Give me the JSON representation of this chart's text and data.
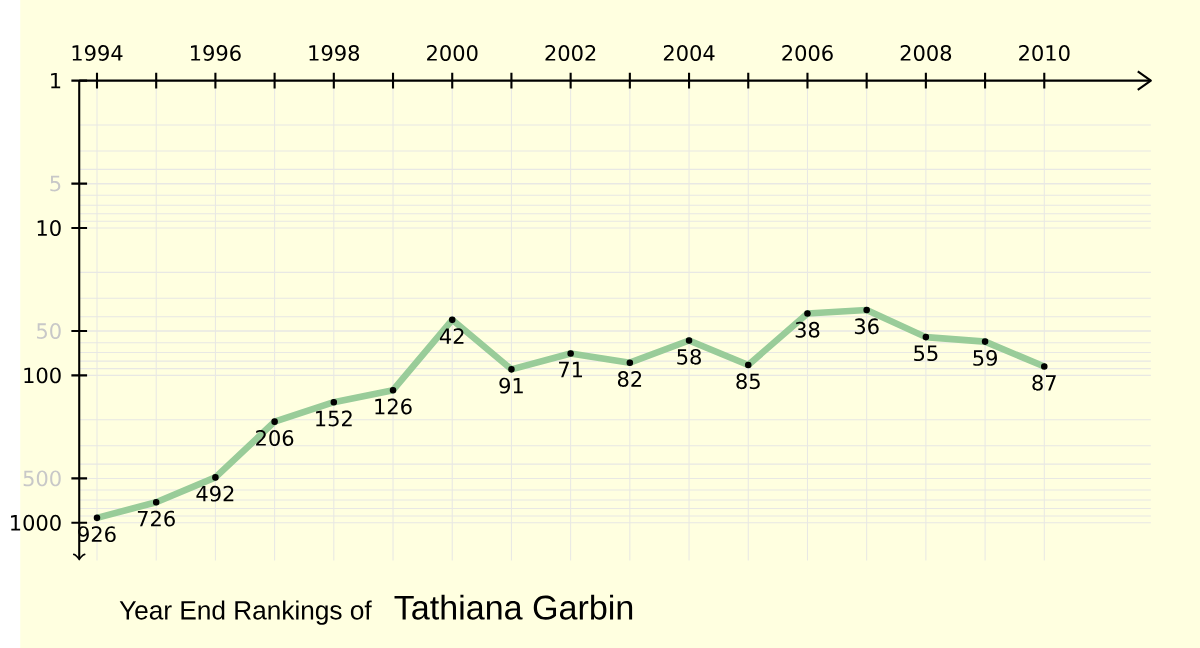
{
  "chart_data": {
    "type": "line",
    "title": "Year End Rankings of",
    "subtitle": "Tathiana Garbin",
    "x": [
      1994,
      1995,
      1996,
      1997,
      1998,
      1999,
      2000,
      2001,
      2002,
      2003,
      2004,
      2005,
      2006,
      2007,
      2008,
      2009,
      2010
    ],
    "series": [
      {
        "color": "#99cc99",
        "values": [
          926,
          726,
          492,
          206,
          152,
          126,
          42,
          91,
          71,
          82,
          58,
          85,
          38,
          36,
          55,
          59,
          87
        ]
      }
    ],
    "xlim": [
      1993.7,
      2011.8
    ],
    "xticks": [
      1994,
      {
        "value": 1995,
        "label": null
      },
      1996,
      {
        "value": 1997,
        "label": null
      },
      1998,
      {
        "value": 1999,
        "label": null
      },
      2000,
      {
        "value": 2001,
        "label": null
      },
      2002,
      {
        "value": 2003,
        "label": null
      },
      2004,
      {
        "value": 2005,
        "label": null
      },
      2006,
      {
        "value": 2007,
        "label": null
      },
      2008,
      {
        "value": 2009,
        "label": null
      },
      2010
    ],
    "ylim": [
      1800,
      1
    ],
    "yticks": [
      1,
      5,
      10,
      50,
      100,
      500,
      1000
    ],
    "log": "y",
    "grid": true,
    "marker": "circle",
    "line_style": "solid",
    "data_labels": true
  }
}
